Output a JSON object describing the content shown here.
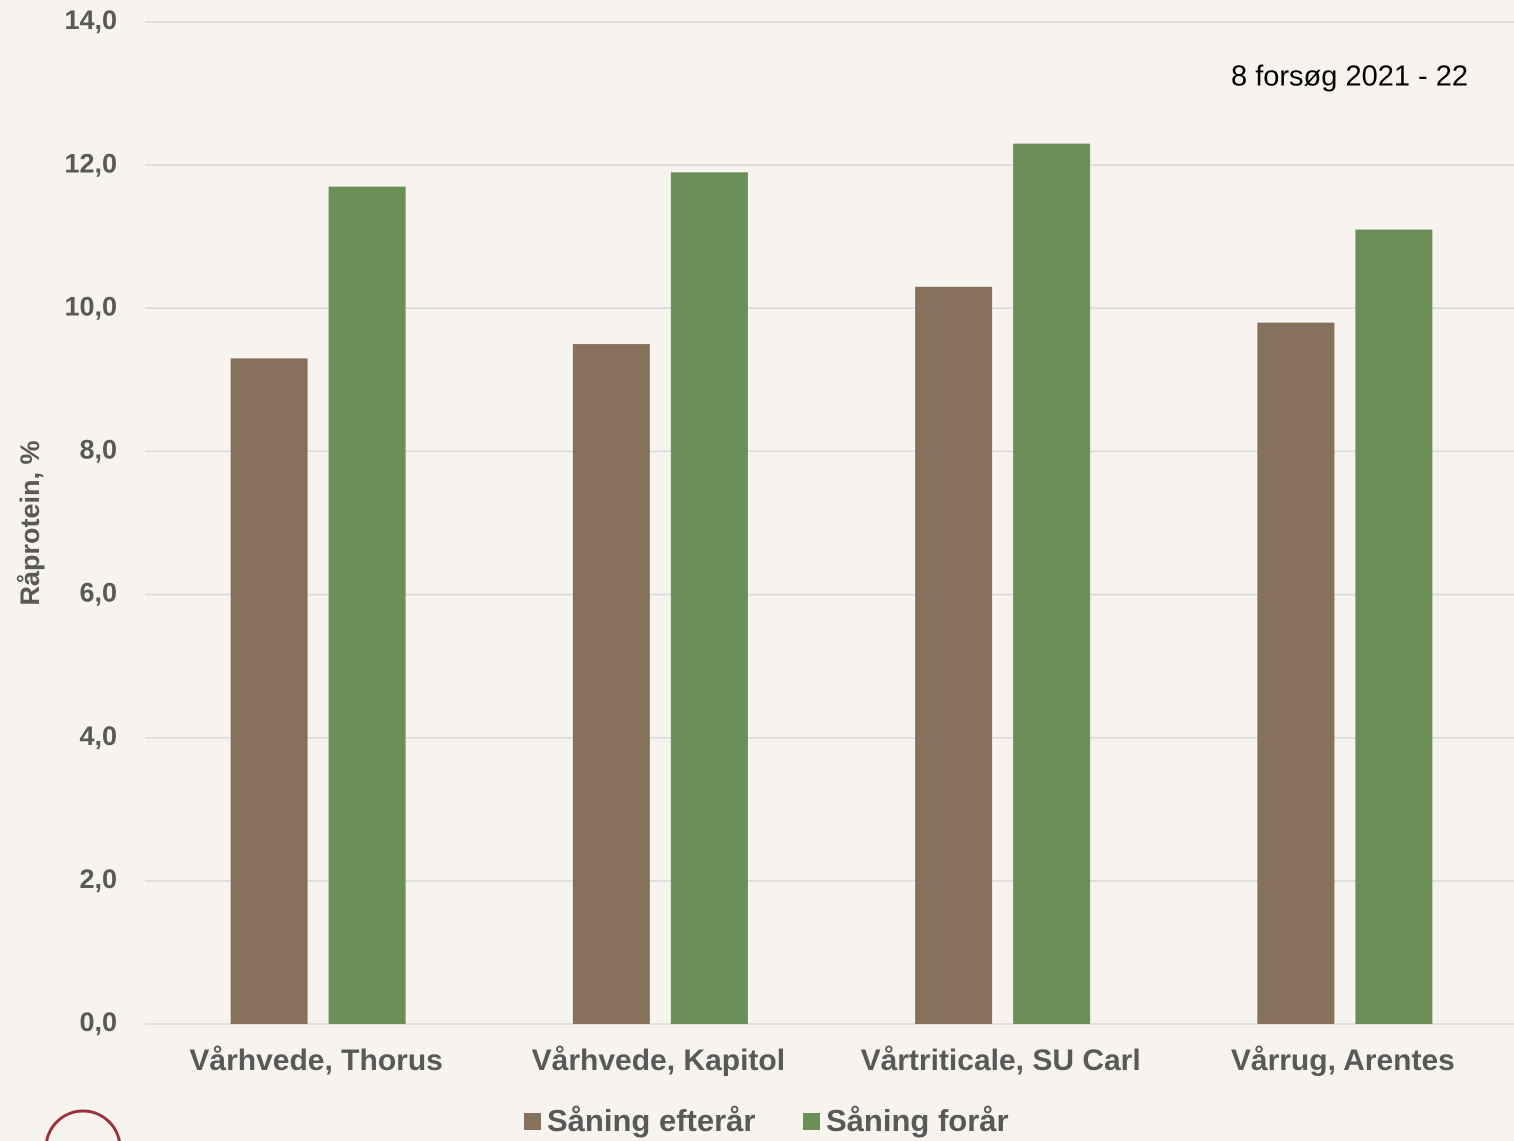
{
  "chart_data": {
    "type": "bar",
    "annotation": "8 forsøg 2021 - 22",
    "y_label": "Råprotein, %",
    "categories": [
      "Vårhvede, Thorus",
      "Vårhvede, Kapitol",
      "Vårtriticale, SU Carl",
      "Vårrug, Arentes"
    ],
    "series": [
      {
        "name": "Såning efterår",
        "color": "#86725c",
        "values": [
          9.3,
          9.5,
          10.3,
          9.8
        ]
      },
      {
        "name": "Såning forår",
        "color": "#6a8f57",
        "values": [
          11.7,
          11.9,
          12.3,
          11.1
        ]
      }
    ],
    "ylim": [
      0,
      14
    ],
    "yticks": [
      {
        "value": 0,
        "label": "0,0"
      },
      {
        "value": 2,
        "label": "2,0"
      },
      {
        "value": 4,
        "label": "4,0"
      },
      {
        "value": 6,
        "label": "6,0"
      },
      {
        "value": 8,
        "label": "8,0"
      },
      {
        "value": 10,
        "label": "10,0"
      },
      {
        "value": 12,
        "label": "12,0"
      },
      {
        "value": 14,
        "label": "14,0"
      }
    ],
    "grid": true,
    "legend": "bottom"
  }
}
